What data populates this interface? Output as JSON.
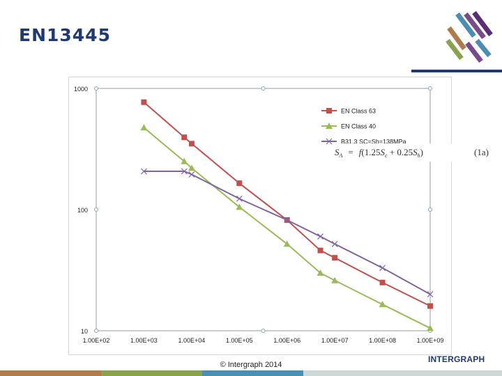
{
  "slide": {
    "title": "EN13445",
    "copyright": "© Intergraph 2014",
    "footer_logo": "INTERGRAPH"
  },
  "colors": {
    "title": "#1f3a73",
    "footer_bar_colors": [
      "#b07a4a",
      "#8aa24c",
      "#4b8eb2",
      "#cfd8d8"
    ]
  },
  "equation": {
    "lhs": "S",
    "lhs_sub": "A",
    "eq": "=",
    "f": "f",
    "body_a": "(1.25",
    "s1": "S",
    "s1_sub": "c",
    "plus": " + 0.25",
    "s2": "S",
    "s2_sub": "h",
    "close": ")",
    "number": "(1a)"
  },
  "chart_data": {
    "type": "line",
    "title": "",
    "xlabel": "",
    "ylabel": "",
    "x_scale": "log",
    "y_scale": "log",
    "xlim": [
      100,
      1000000000
    ],
    "ylim": [
      10,
      1000
    ],
    "x_ticks": [
      100,
      1000,
      10000,
      100000,
      1000000,
      10000000,
      100000000,
      1000000000
    ],
    "x_tick_labels": [
      "1.00E+02",
      "1.00E+03",
      "1.00E+04",
      "1.00E+05",
      "1.00E+06",
      "1.00E+07",
      "1.00E+08",
      "1.00E+09"
    ],
    "y_ticks": [
      10,
      100,
      1000
    ],
    "y_tick_labels": [
      "10",
      "100",
      "1000"
    ],
    "grid": false,
    "legend_position": "top-right",
    "series": [
      {
        "name": "EN Class 63",
        "color": "#c0504d",
        "marker": "square",
        "x": [
          1000,
          7000,
          10000,
          100000,
          1000000,
          5000000,
          10000000,
          100000000,
          1000000000
        ],
        "y": [
          770,
          395,
          350,
          165,
          82,
          46,
          40,
          25,
          16
        ]
      },
      {
        "name": "EN Class 40",
        "color": "#9bbb59",
        "marker": "triangle",
        "x": [
          1000,
          7000,
          10000,
          100000,
          1000000,
          5000000,
          10000000,
          100000000,
          1000000000
        ],
        "y": [
          475,
          250,
          220,
          105,
          52,
          30,
          26,
          16.5,
          10.5
        ]
      },
      {
        "name": "B31.3 SC=Sh=138MPa",
        "color": "#8064a2",
        "marker": "x",
        "x": [
          1000,
          7000,
          10000,
          100000,
          1000000,
          5000000,
          10000000,
          100000000,
          1000000000
        ],
        "y": [
          207,
          207,
          195,
          123,
          82,
          60,
          52,
          33,
          20
        ]
      }
    ]
  }
}
